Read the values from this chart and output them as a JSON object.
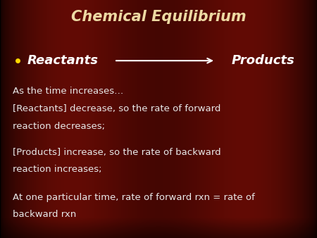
{
  "title": "Chemical Equilibrium",
  "title_color": "#EDD9A3",
  "title_fontsize": 15,
  "bullet_label": "Reactants",
  "bullet_color": "#FFD700",
  "bullet_text_color": "#FFFFFF",
  "arrow_color": "#FFFFFF",
  "products_label": "Products",
  "body_text_color": "#E8E8E8",
  "body_fontsize": 9.5,
  "reactants_fontsize": 13,
  "line1": "As the time increases…",
  "line2": "[Reactants] decrease, so the rate of forward",
  "line3": "reaction decreases;",
  "line4": "[Products] increase, so the rate of backward",
  "line5": "reaction increases;",
  "line6": "At one particular time, rate of forward rxn = rate of",
  "line7": "backward rxn",
  "fig_width": 4.5,
  "fig_height": 3.38,
  "dpi": 100
}
